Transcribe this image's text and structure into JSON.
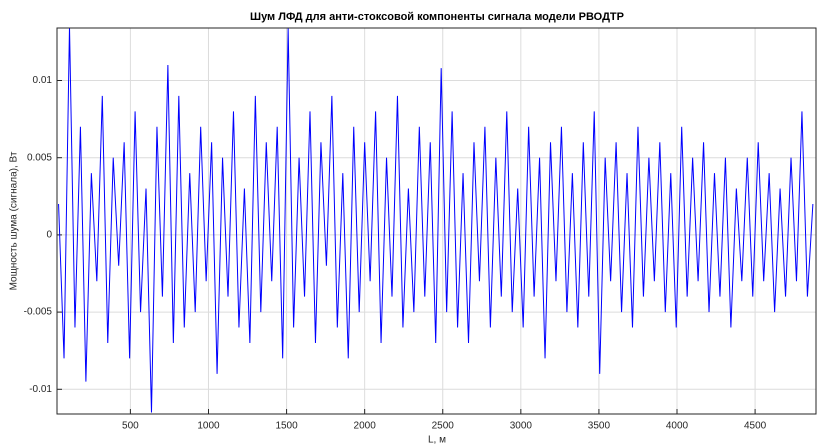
{
  "chart_data": {
    "type": "line",
    "title": "Шум ЛФД для анти-стоксовой компоненты сигнала модели РВОДТР",
    "xlabel": "L, м",
    "ylabel": "Мощность шума (сигнала), Вт",
    "grid": true,
    "xlim": [
      30,
      4890
    ],
    "ylim": [
      -0.0116,
      0.0134
    ],
    "xticks": [
      500,
      1000,
      1500,
      2000,
      2500,
      3000,
      3500,
      4000,
      4500
    ],
    "yticks": [
      -0.01,
      -0.005,
      0,
      0.005,
      0.01
    ],
    "x": [
      40,
      75,
      110,
      145,
      180,
      215,
      250,
      285,
      320,
      355,
      390,
      425,
      460,
      495,
      530,
      565,
      600,
      635,
      670,
      705,
      740,
      775,
      810,
      845,
      880,
      915,
      950,
      985,
      1020,
      1055,
      1090,
      1125,
      1160,
      1195,
      1230,
      1265,
      1300,
      1335,
      1370,
      1405,
      1440,
      1475,
      1510,
      1545,
      1580,
      1615,
      1650,
      1685,
      1720,
      1755,
      1790,
      1825,
      1860,
      1895,
      1930,
      1965,
      2000,
      2035,
      2070,
      2105,
      2140,
      2175,
      2210,
      2245,
      2280,
      2315,
      2350,
      2385,
      2420,
      2455,
      2490,
      2525,
      2560,
      2595,
      2630,
      2665,
      2700,
      2735,
      2770,
      2805,
      2840,
      2875,
      2910,
      2945,
      2980,
      3015,
      3050,
      3085,
      3120,
      3155,
      3190,
      3225,
      3260,
      3295,
      3330,
      3365,
      3400,
      3435,
      3470,
      3505,
      3540,
      3575,
      3610,
      3645,
      3680,
      3715,
      3750,
      3785,
      3820,
      3855,
      3890,
      3925,
      3960,
      3995,
      4030,
      4065,
      4100,
      4135,
      4170,
      4205,
      4240,
      4275,
      4310,
      4345,
      4380,
      4415,
      4450,
      4485,
      4520,
      4555,
      4590,
      4625,
      4660,
      4695,
      4730,
      4765,
      4800,
      4835,
      4870
    ],
    "series": [
      {
        "color": "#0000ff",
        "values": [
          0.002,
          -0.008,
          0.0135,
          -0.006,
          0.007,
          -0.0095,
          0.004,
          -0.003,
          0.009,
          -0.007,
          0.005,
          -0.002,
          0.006,
          -0.008,
          0.008,
          -0.005,
          0.003,
          -0.0115,
          0.007,
          -0.004,
          0.011,
          -0.007,
          0.009,
          -0.006,
          0.004,
          -0.005,
          0.007,
          -0.003,
          0.006,
          -0.009,
          0.005,
          -0.004,
          0.008,
          -0.006,
          0.003,
          -0.007,
          0.009,
          -0.005,
          0.006,
          -0.003,
          0.007,
          -0.008,
          0.0134,
          -0.006,
          0.005,
          -0.004,
          0.008,
          -0.007,
          0.006,
          -0.002,
          0.009,
          -0.006,
          0.004,
          -0.008,
          0.007,
          -0.005,
          0.006,
          -0.003,
          0.008,
          -0.007,
          0.005,
          -0.004,
          0.009,
          -0.006,
          0.003,
          -0.005,
          0.007,
          -0.004,
          0.006,
          -0.007,
          0.0108,
          -0.005,
          0.008,
          -0.006,
          0.004,
          -0.007,
          0.006,
          -0.003,
          0.007,
          -0.006,
          0.005,
          -0.004,
          0.008,
          -0.005,
          0.003,
          -0.006,
          0.007,
          -0.004,
          0.005,
          -0.008,
          0.006,
          -0.003,
          0.007,
          -0.005,
          0.004,
          -0.006,
          0.006,
          -0.004,
          0.008,
          -0.009,
          0.005,
          -0.003,
          0.006,
          -0.005,
          0.004,
          -0.006,
          0.007,
          -0.004,
          0.005,
          -0.003,
          0.006,
          -0.005,
          0.004,
          -0.006,
          0.007,
          -0.004,
          0.005,
          -0.003,
          0.006,
          -0.005,
          0.004,
          -0.004,
          0.005,
          -0.006,
          0.003,
          -0.003,
          0.005,
          -0.004,
          0.006,
          -0.003,
          0.004,
          -0.005,
          0.003,
          -0.004,
          0.005,
          -0.003,
          0.008,
          -0.004,
          0.002
        ]
      }
    ]
  }
}
